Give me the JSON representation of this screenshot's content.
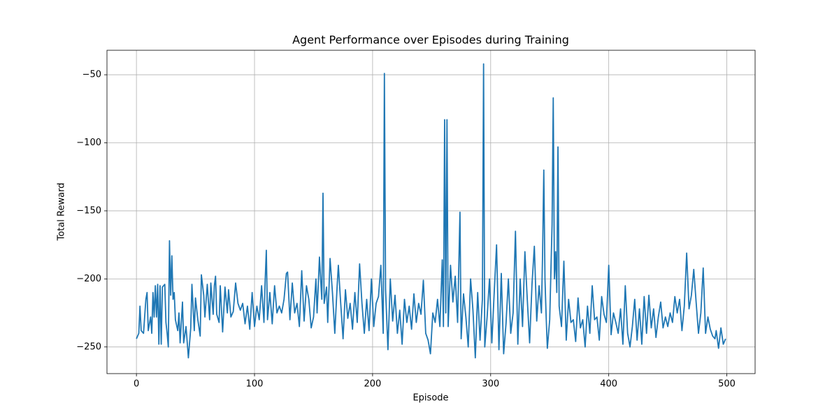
{
  "chart_data": {
    "type": "line",
    "title": "Agent Performance over Episodes during Training",
    "x_label": "Episode",
    "y_label": "Total Reward",
    "color": "#1f77b4",
    "grid": true,
    "xlim": [
      -24.95,
      523.95
    ],
    "ylim": [
      -269.6,
      -32
    ],
    "xticks": [
      0,
      100,
      200,
      300,
      400,
      500
    ],
    "yticks": [
      {
        "value": -250,
        "label": "−250"
      },
      {
        "value": -200,
        "label": "−200"
      },
      {
        "value": -150,
        "label": "−150"
      },
      {
        "value": -100,
        "label": "−100"
      },
      {
        "value": -50,
        "label": "−50"
      }
    ],
    "x": [
      0,
      2,
      3,
      4,
      6,
      8,
      9,
      10,
      12,
      13,
      14,
      15,
      16,
      17,
      18,
      19,
      20,
      21,
      22,
      24,
      25,
      26,
      27,
      28,
      29,
      30,
      31,
      32,
      33,
      35,
      36,
      37,
      39,
      40,
      42,
      44,
      46,
      47,
      49,
      50,
      52,
      54,
      55,
      57,
      58,
      60,
      62,
      63,
      65,
      66,
      67,
      68,
      70,
      71,
      73,
      75,
      77,
      78,
      80,
      82,
      84,
      86,
      88,
      90,
      92,
      94,
      96,
      98,
      100,
      102,
      104,
      106,
      108,
      109,
      110,
      111,
      113,
      115,
      117,
      119,
      121,
      123,
      125,
      127,
      128,
      130,
      132,
      134,
      136,
      138,
      140,
      142,
      144,
      146,
      148,
      150,
      152,
      153,
      155,
      156,
      157,
      158,
      159,
      161,
      162,
      164,
      166,
      168,
      170,
      171,
      173,
      175,
      177,
      179,
      181,
      183,
      185,
      187,
      189,
      191,
      193,
      195,
      197,
      199,
      201,
      203,
      205,
      207,
      209,
      210,
      211,
      213,
      215,
      217,
      219,
      221,
      223,
      225,
      227,
      229,
      231,
      233,
      235,
      237,
      239,
      241,
      243,
      245,
      247,
      249,
      251,
      253,
      255,
      257,
      259,
      260,
      261,
      262,
      263,
      264,
      266,
      268,
      270,
      272,
      274,
      275,
      277,
      279,
      281,
      283,
      285,
      287,
      289,
      291,
      293,
      294,
      295,
      297,
      299,
      301,
      303,
      305,
      307,
      309,
      311,
      313,
      315,
      317,
      319,
      321,
      323,
      325,
      327,
      329,
      331,
      333,
      335,
      337,
      339,
      341,
      343,
      344,
      345,
      346,
      347,
      348,
      350,
      352,
      353,
      354,
      355,
      356,
      357,
      358,
      360,
      362,
      364,
      366,
      368,
      370,
      372,
      374,
      376,
      378,
      380,
      382,
      384,
      386,
      388,
      390,
      392,
      394,
      396,
      398,
      400,
      402,
      404,
      406,
      408,
      410,
      412,
      414,
      416,
      418,
      420,
      422,
      424,
      426,
      428,
      430,
      432,
      434,
      436,
      438,
      440,
      442,
      444,
      446,
      448,
      450,
      452,
      454,
      456,
      458,
      460,
      462,
      464,
      466,
      468,
      470,
      472,
      474,
      476,
      478,
      480,
      482,
      484,
      486,
      488,
      490,
      491,
      493,
      495,
      497,
      499
    ],
    "values": [
      -244,
      -240,
      -220,
      -238,
      -240,
      -215,
      -210,
      -238,
      -228,
      -240,
      -210,
      -228,
      -205,
      -228,
      -204,
      -248,
      -205,
      -248,
      -206,
      -204,
      -232,
      -240,
      -250,
      -172,
      -212,
      -183,
      -215,
      -210,
      -230,
      -238,
      -225,
      -247,
      -217,
      -247,
      -235,
      -258,
      -236,
      -204,
      -238,
      -214,
      -230,
      -242,
      -197,
      -212,
      -228,
      -204,
      -230,
      -203,
      -226,
      -205,
      -198,
      -226,
      -232,
      -205,
      -239,
      -206,
      -225,
      -208,
      -228,
      -224,
      -203,
      -218,
      -223,
      -218,
      -233,
      -220,
      -237,
      -210,
      -235,
      -220,
      -230,
      -205,
      -232,
      -202,
      -179,
      -230,
      -210,
      -233,
      -205,
      -225,
      -220,
      -225,
      -215,
      -196,
      -195,
      -230,
      -203,
      -225,
      -218,
      -235,
      -194,
      -231,
      -205,
      -215,
      -236,
      -228,
      -200,
      -225,
      -184,
      -200,
      -215,
      -137,
      -218,
      -206,
      -232,
      -185,
      -210,
      -240,
      -205,
      -190,
      -218,
      -244,
      -208,
      -229,
      -218,
      -237,
      -210,
      -232,
      -189,
      -218,
      -240,
      -215,
      -238,
      -200,
      -235,
      -218,
      -213,
      -190,
      -240,
      -49,
      -208,
      -252,
      -200,
      -231,
      -212,
      -240,
      -223,
      -248,
      -215,
      -232,
      -220,
      -237,
      -211,
      -232,
      -218,
      -226,
      -201,
      -240,
      -245,
      -255,
      -225,
      -232,
      -215,
      -235,
      -186,
      -235,
      -83,
      -225,
      -83,
      -235,
      -190,
      -217,
      -198,
      -232,
      -151,
      -244,
      -211,
      -228,
      -250,
      -200,
      -223,
      -258,
      -210,
      -245,
      -215,
      -42,
      -250,
      -228,
      -200,
      -247,
      -210,
      -175,
      -252,
      -196,
      -255,
      -233,
      -200,
      -240,
      -225,
      -165,
      -248,
      -200,
      -235,
      -180,
      -215,
      -247,
      -204,
      -176,
      -231,
      -205,
      -225,
      -180,
      -120,
      -200,
      -228,
      -251,
      -230,
      -160,
      -67,
      -200,
      -180,
      -210,
      -103,
      -220,
      -235,
      -187,
      -245,
      -215,
      -232,
      -230,
      -246,
      -214,
      -236,
      -230,
      -250,
      -220,
      -240,
      -205,
      -230,
      -228,
      -245,
      -213,
      -226,
      -232,
      -190,
      -241,
      -225,
      -232,
      -240,
      -222,
      -248,
      -205,
      -240,
      -250,
      -235,
      -215,
      -245,
      -222,
      -248,
      -213,
      -240,
      -212,
      -236,
      -222,
      -243,
      -228,
      -217,
      -236,
      -228,
      -235,
      -225,
      -232,
      -213,
      -225,
      -215,
      -238,
      -220,
      -181,
      -222,
      -212,
      -193,
      -217,
      -240,
      -225,
      -192,
      -240,
      -228,
      -237,
      -242,
      -244,
      -238,
      -251,
      -236,
      -248,
      -244
    ]
  }
}
